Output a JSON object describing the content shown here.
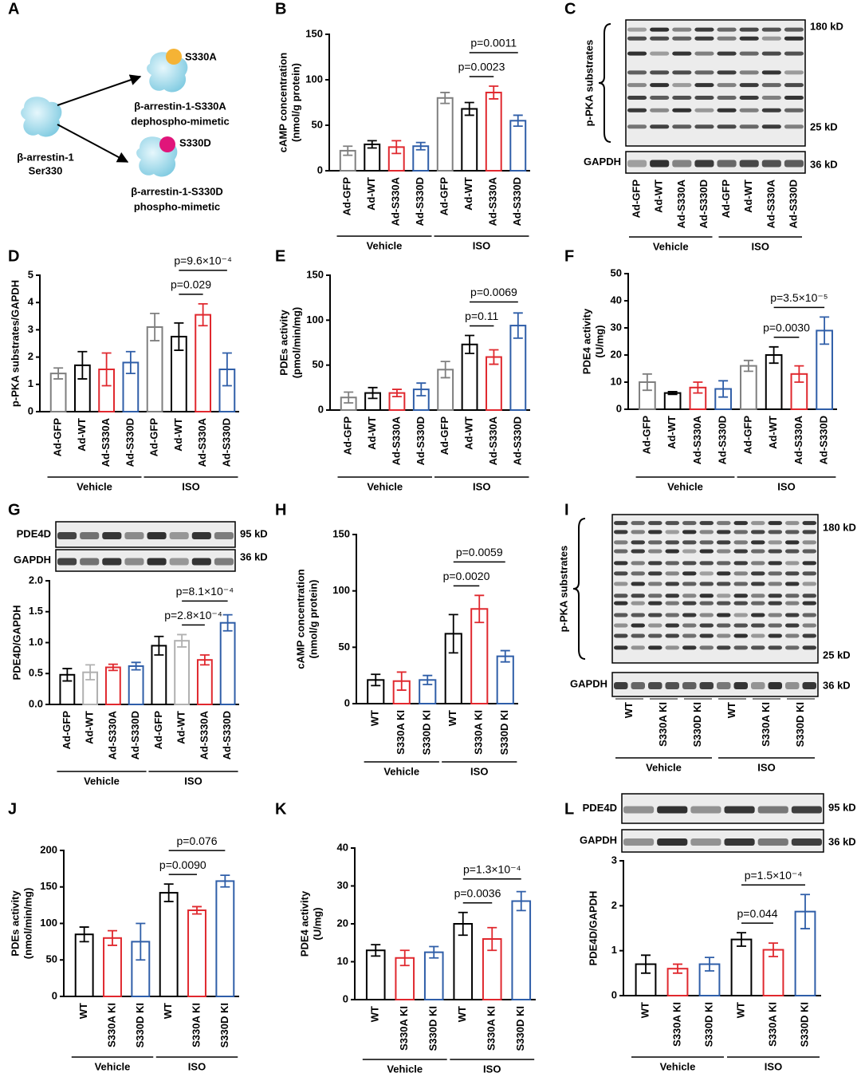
{
  "panel_labels": [
    "A",
    "B",
    "C",
    "D",
    "E",
    "F",
    "G",
    "H",
    "I",
    "J",
    "K",
    "L"
  ],
  "diagram": {
    "center_label": [
      "β-arrestin-1",
      "Ser330"
    ],
    "variants": [
      {
        "site": "S330A",
        "name": "β-arrestin-1-S330A",
        "desc": "dephospho-mimetic",
        "color": "#f5b335"
      },
      {
        "site": "S330D",
        "name": "β-arrestin-1-S330D",
        "desc": "phospho-mimetic",
        "color": "#e0157a"
      }
    ]
  },
  "blots": [
    {
      "rows": [
        {
          "label": "p-PKA substrates",
          "markers": [
            "180 kD",
            "25 kD"
          ]
        },
        {
          "label": "GAPDH",
          "markers": [
            "36 kD"
          ]
        }
      ],
      "categories": [
        "Ad-GFP",
        "Ad-WT",
        "Ad-S330A",
        "Ad-S330D",
        "Ad-GFP",
        "Ad-WT",
        "Ad-S330A",
        "Ad-S330D"
      ],
      "groups": [
        {
          "name": "Vehicle",
          "from": 0,
          "to": 3
        },
        {
          "name": "ISO",
          "from": 4,
          "to": 7
        }
      ]
    },
    {
      "rows": [
        {
          "label": "PDE4D",
          "markers": [
            "95 kD"
          ]
        },
        {
          "label": "GAPDH",
          "markers": [
            "36 kD"
          ]
        }
      ]
    },
    {
      "rows": [
        {
          "label": "p-PKA substrates",
          "markers": [
            "180 kD",
            "25 kD"
          ]
        },
        {
          "label": "GAPDH",
          "markers": [
            "36 kD"
          ]
        }
      ],
      "categories": [
        "WT",
        "S330A KI",
        "S330D KI",
        "WT",
        "S330A KI",
        "S330D KI"
      ],
      "groups": [
        {
          "name": "Vehicle",
          "from": 0,
          "to": 2
        },
        {
          "name": "ISO",
          "from": 3,
          "to": 5
        }
      ]
    },
    {
      "rows": [
        {
          "label": "PDE4D",
          "markers": [
            "95 kD"
          ]
        },
        {
          "label": "GAPDH",
          "markers": [
            "36 kD"
          ]
        }
      ]
    }
  ],
  "chart_data": [
    {
      "type": "bar",
      "ylabel": [
        "cAMP concentration",
        "(nmol/g protein)"
      ],
      "categories": [
        "Ad-GFP",
        "Ad-WT",
        "Ad-S330A",
        "Ad-S330D",
        "Ad-GFP",
        "Ad-WT",
        "Ad-S330A",
        "Ad-S330D"
      ],
      "values": [
        22,
        29,
        26,
        27,
        80,
        68,
        86,
        55
      ],
      "errors": [
        5,
        4,
        7,
        4,
        6,
        7,
        7,
        6
      ],
      "colors": [
        "#7f7f7f",
        "#000000",
        "#e0282e",
        "#2f5ea8",
        "#7f7f7f",
        "#000000",
        "#e0282e",
        "#2f5ea8"
      ],
      "ylim": [
        0,
        150
      ],
      "yticks": [
        0,
        50,
        100,
        150
      ],
      "groups": [
        {
          "name": "Vehicle",
          "from": 0,
          "to": 3
        },
        {
          "name": "ISO",
          "from": 4,
          "to": 7
        }
      ],
      "annotations": [
        {
          "text": "p=0.0023",
          "from": 5,
          "to": 6
        },
        {
          "text": "p=0.0011",
          "from": 5,
          "to": 7
        }
      ]
    },
    {
      "type": "bar",
      "ylabel": [
        "p-PKA substrates/GAPDH"
      ],
      "categories": [
        "Ad-GFP",
        "Ad-WT",
        "Ad-S330A",
        "Ad-S330D",
        "Ad-GFP",
        "Ad-WT",
        "Ad-S330A",
        "Ad-S330D"
      ],
      "values": [
        1.4,
        1.7,
        1.55,
        1.8,
        3.1,
        2.75,
        3.55,
        1.55
      ],
      "errors": [
        0.2,
        0.5,
        0.6,
        0.4,
        0.5,
        0.5,
        0.4,
        0.6
      ],
      "colors": [
        "#7f7f7f",
        "#000000",
        "#e0282e",
        "#2f5ea8",
        "#7f7f7f",
        "#000000",
        "#e0282e",
        "#2f5ea8"
      ],
      "ylim": [
        0,
        5
      ],
      "yticks": [
        0,
        1,
        2,
        3,
        4,
        5
      ],
      "groups": [
        {
          "name": "Vehicle",
          "from": 0,
          "to": 3
        },
        {
          "name": "ISO",
          "from": 4,
          "to": 7
        }
      ],
      "annotations": [
        {
          "text": "p=0.029",
          "from": 5,
          "to": 6
        },
        {
          "text": "p=9.6×10⁻⁴",
          "from": 5,
          "to": 7
        }
      ]
    },
    {
      "type": "bar",
      "ylabel": [
        "PDEs activity",
        "(pmol/min/mg)"
      ],
      "categories": [
        "Ad-GFP",
        "Ad-WT",
        "Ad-S330A",
        "Ad-S330D",
        "Ad-GFP",
        "Ad-WT",
        "Ad-S330A",
        "Ad-S330D"
      ],
      "values": [
        14,
        19,
        19,
        23,
        45,
        73,
        59,
        94
      ],
      "errors": [
        6,
        6,
        4,
        7,
        9,
        10,
        8,
        14
      ],
      "colors": [
        "#7f7f7f",
        "#000000",
        "#e0282e",
        "#2f5ea8",
        "#7f7f7f",
        "#000000",
        "#e0282e",
        "#2f5ea8"
      ],
      "ylim": [
        0,
        150
      ],
      "yticks": [
        0,
        50,
        100,
        150
      ],
      "groups": [
        {
          "name": "Vehicle",
          "from": 0,
          "to": 3
        },
        {
          "name": "ISO",
          "from": 4,
          "to": 7
        }
      ],
      "annotations": [
        {
          "text": "p=0.11",
          "from": 5,
          "to": 6
        },
        {
          "text": "p=0.0069",
          "from": 5,
          "to": 7
        }
      ]
    },
    {
      "type": "bar",
      "ylabel": [
        "PDE4 activity",
        "(U/mg)"
      ],
      "categories": [
        "Ad-GFP",
        "Ad-WT",
        "Ad-S330A",
        "Ad-S330D",
        "Ad-GFP",
        "Ad-WT",
        "Ad-S330A",
        "Ad-S330D"
      ],
      "values": [
        10,
        6,
        8,
        7.5,
        16,
        20,
        13,
        29
      ],
      "errors": [
        3,
        0.5,
        2,
        3,
        2,
        3,
        3,
        5
      ],
      "colors": [
        "#7f7f7f",
        "#000000",
        "#e0282e",
        "#2f5ea8",
        "#7f7f7f",
        "#000000",
        "#e0282e",
        "#2f5ea8"
      ],
      "ylim": [
        0,
        50
      ],
      "yticks": [
        0,
        10,
        20,
        30,
        40,
        50
      ],
      "groups": [
        {
          "name": "Vehicle",
          "from": 0,
          "to": 3
        },
        {
          "name": "ISO",
          "from": 4,
          "to": 7
        }
      ],
      "annotations": [
        {
          "text": "p=0.0030",
          "from": 5,
          "to": 6
        },
        {
          "text": "p=3.5×10⁻⁵",
          "from": 5,
          "to": 7
        }
      ]
    },
    {
      "type": "bar",
      "ylabel": [
        "PDE4D/GAPDH"
      ],
      "categories": [
        "Ad-GFP",
        "Ad-WT",
        "Ad-S330A",
        "Ad-S330D",
        "Ad-GFP",
        "Ad-WT",
        "Ad-S330A",
        "Ad-S330D"
      ],
      "values": [
        0.48,
        0.52,
        0.6,
        0.62,
        0.95,
        1.03,
        0.72,
        1.32
      ],
      "errors": [
        0.1,
        0.12,
        0.05,
        0.06,
        0.15,
        0.1,
        0.08,
        0.13
      ],
      "colors": [
        "#000000",
        "#b0b0b0",
        "#e0282e",
        "#2f5ea8",
        "#000000",
        "#b0b0b0",
        "#e0282e",
        "#2f5ea8"
      ],
      "ylim": [
        0,
        2
      ],
      "yticks": [
        {
          "value": 0,
          "label": "0.0"
        },
        0.5,
        {
          "value": 1,
          "label": "1.0"
        },
        1.5,
        {
          "value": 2,
          "label": "2.0"
        }
      ],
      "groups": [
        {
          "name": "Vehicle",
          "from": 0,
          "to": 3
        },
        {
          "name": "ISO",
          "from": 4,
          "to": 7
        }
      ],
      "annotations": [
        {
          "text": "p=2.8×10⁻⁴",
          "from": 5,
          "to": 6
        },
        {
          "text": "p=8.1×10⁻⁴",
          "from": 5,
          "to": 7
        }
      ]
    },
    {
      "type": "bar",
      "ylabel": [
        "cAMP concentration",
        "(nmol/g protein)"
      ],
      "categories": [
        "WT",
        "S330A KI",
        "S330D KI",
        "WT",
        "S330A KI",
        "S330D KI"
      ],
      "values": [
        21,
        20,
        21,
        62,
        84,
        42
      ],
      "errors": [
        5,
        8,
        4,
        17,
        12,
        5
      ],
      "colors": [
        "#000000",
        "#e0282e",
        "#2f5ea8",
        "#000000",
        "#e0282e",
        "#2f5ea8"
      ],
      "ylim": [
        0,
        150
      ],
      "yticks": [
        0,
        50,
        100,
        150
      ],
      "groups": [
        {
          "name": "Vehicle",
          "from": 0,
          "to": 2
        },
        {
          "name": "ISO",
          "from": 3,
          "to": 5
        }
      ],
      "annotations": [
        {
          "text": "p=0.0020",
          "from": 3,
          "to": 4
        },
        {
          "text": "p=0.0059",
          "from": 3,
          "to": 5
        }
      ]
    },
    {
      "type": "bar",
      "ylabel": [
        "PDEs activity",
        "(nmol/min/mg)"
      ],
      "categories": [
        "WT",
        "S330A KI",
        "S330D KI",
        "WT",
        "S330A KI",
        "S330D KI"
      ],
      "values": [
        85,
        80,
        75,
        142,
        118,
        158
      ],
      "errors": [
        10,
        10,
        25,
        12,
        5,
        8
      ],
      "colors": [
        "#000000",
        "#e0282e",
        "#2f5ea8",
        "#000000",
        "#e0282e",
        "#2f5ea8"
      ],
      "ylim": [
        0,
        200
      ],
      "yticks": [
        0,
        50,
        100,
        150,
        200
      ],
      "groups": [
        {
          "name": "Vehicle",
          "from": 0,
          "to": 2
        },
        {
          "name": "ISO",
          "from": 3,
          "to": 5
        }
      ],
      "annotations": [
        {
          "text": "p=0.0090",
          "from": 3,
          "to": 4
        },
        {
          "text": "p=0.076",
          "from": 3,
          "to": 5
        }
      ]
    },
    {
      "type": "bar",
      "ylabel": [
        "PDE4 activity",
        "(U/mg)"
      ],
      "categories": [
        "WT",
        "S330A KI",
        "S330D KI",
        "WT",
        "S330A KI",
        "S330D KI"
      ],
      "values": [
        13,
        11,
        12.5,
        20,
        16,
        26
      ],
      "errors": [
        1.5,
        2,
        1.5,
        3,
        3,
        2.5
      ],
      "colors": [
        "#000000",
        "#e0282e",
        "#2f5ea8",
        "#000000",
        "#e0282e",
        "#2f5ea8"
      ],
      "ylim": [
        0,
        40
      ],
      "yticks": [
        0,
        10,
        20,
        30,
        40
      ],
      "groups": [
        {
          "name": "Vehicle",
          "from": 0,
          "to": 2
        },
        {
          "name": "ISO",
          "from": 3,
          "to": 5
        }
      ],
      "annotations": [
        {
          "text": "p=0.0036",
          "from": 3,
          "to": 4
        },
        {
          "text": "p=1.3×10⁻⁴",
          "from": 3,
          "to": 5
        }
      ]
    },
    {
      "type": "bar",
      "ylabel": [
        "PDE4D/GAPDH"
      ],
      "categories": [
        "WT",
        "S330A KI",
        "S330D KI",
        "WT",
        "S330A KI",
        "S330D KI"
      ],
      "values": [
        0.7,
        0.6,
        0.7,
        1.25,
        1.02,
        1.87
      ],
      "errors": [
        0.2,
        0.1,
        0.15,
        0.15,
        0.15,
        0.38
      ],
      "colors": [
        "#000000",
        "#e0282e",
        "#2f5ea8",
        "#000000",
        "#e0282e",
        "#2f5ea8"
      ],
      "ylim": [
        0,
        3
      ],
      "yticks": [
        0,
        1,
        2,
        3
      ],
      "groups": [
        {
          "name": "Vehicle",
          "from": 0,
          "to": 2
        },
        {
          "name": "ISO",
          "from": 3,
          "to": 5
        }
      ],
      "annotations": [
        {
          "text": "p=0.044",
          "from": 3,
          "to": 4
        },
        {
          "text": "p=1.5×10⁻⁴",
          "from": 3,
          "to": 5
        }
      ]
    }
  ]
}
